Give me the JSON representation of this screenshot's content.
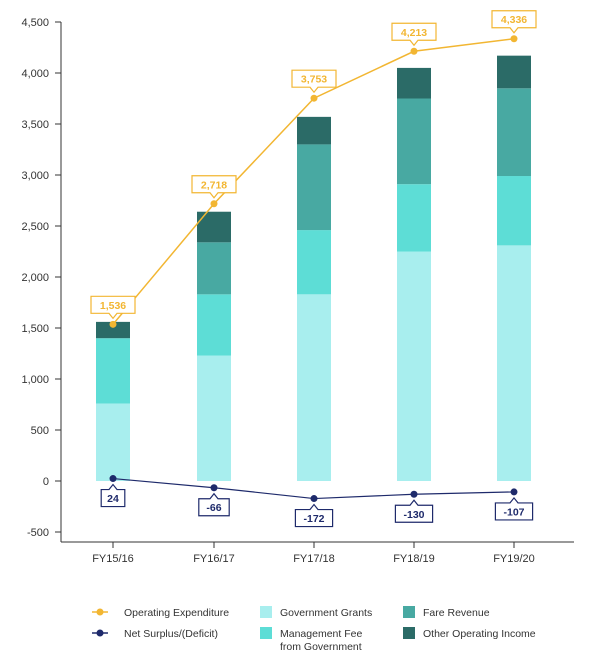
{
  "chart_data": {
    "type": "bar",
    "categories": [
      "FY15/16",
      "FY16/17",
      "FY17/18",
      "FY18/19",
      "FY19/20"
    ],
    "ylim": [
      -500,
      4500
    ],
    "yticks": [
      -500,
      0,
      500,
      1000,
      1500,
      2000,
      2500,
      3000,
      3500,
      4000,
      4500
    ],
    "ytick_labels": [
      "-500",
      "0",
      "500",
      "1,000",
      "1,500",
      "2,000",
      "2,500",
      "3,000",
      "3,500",
      "4,000",
      "4,500"
    ],
    "stacked_series": [
      {
        "name": "Government Grants",
        "color": "#A8EEEE",
        "values": [
          760,
          1230,
          1830,
          2250,
          2310
        ]
      },
      {
        "name": "Management Fee\nfrom Government",
        "color": "#5DDDD6",
        "values": [
          640,
          600,
          630,
          660,
          680
        ]
      },
      {
        "name": "Fare Revenue",
        "color": "#48A9A2",
        "values": [
          0,
          510,
          840,
          840,
          860
        ]
      },
      {
        "name": "Other Operating Income",
        "color": "#2B6B67",
        "values": [
          160,
          300,
          270,
          300,
          320
        ]
      }
    ],
    "line_series": [
      {
        "name": "Operating Expenditure",
        "color": "#F2B632",
        "values": [
          1536,
          2718,
          3753,
          4213,
          4336
        ],
        "labels": [
          "1,536",
          "2,718",
          "3,753",
          "4,213",
          "4,336"
        ]
      },
      {
        "name": "Net Surplus/(Deficit)",
        "color": "#1E2A6B",
        "values": [
          24,
          -66,
          -172,
          -130,
          -107
        ],
        "labels": [
          "24",
          "-66",
          "-172",
          "-130",
          "-107"
        ]
      }
    ],
    "legend": [
      {
        "name": "Operating Expenditure",
        "kind": "line",
        "color": "#F2B632"
      },
      {
        "name": "Government Grants",
        "kind": "box",
        "color": "#A8EEEE"
      },
      {
        "name": "Fare Revenue",
        "kind": "box",
        "color": "#48A9A2"
      },
      {
        "name": "Net Surplus/(Deficit)",
        "kind": "line",
        "color": "#1E2A6B"
      },
      {
        "name": "Management Fee\nfrom Government",
        "kind": "box",
        "color": "#5DDDD6"
      },
      {
        "name": "Other Operating Income",
        "kind": "box",
        "color": "#2B6B67"
      }
    ],
    "legend_placement": "bottom",
    "grid": false
  }
}
